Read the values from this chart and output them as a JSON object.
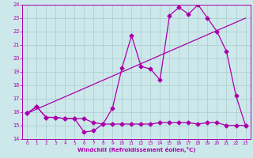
{
  "xlabel": "Windchill (Refroidissement éolien,°C)",
  "xlim": [
    -0.5,
    23.5
  ],
  "ylim": [
    14,
    24
  ],
  "yticks": [
    14,
    15,
    16,
    17,
    18,
    19,
    20,
    21,
    22,
    23,
    24
  ],
  "xticks": [
    0,
    1,
    2,
    3,
    4,
    5,
    6,
    7,
    8,
    9,
    10,
    11,
    12,
    13,
    14,
    15,
    16,
    17,
    18,
    19,
    20,
    21,
    22,
    23
  ],
  "bg_color": "#cce8ea",
  "grid_color": "#aacccc",
  "line_color": "#aa00aa",
  "line1_x": [
    0,
    1,
    2,
    3,
    4,
    5,
    6,
    7,
    8,
    9,
    10,
    11,
    12,
    13,
    14,
    15,
    16,
    17,
    18,
    19,
    20,
    21,
    22,
    23
  ],
  "line1_y": [
    15.9,
    16.4,
    15.6,
    15.6,
    15.5,
    15.5,
    14.5,
    14.6,
    15.1,
    15.1,
    15.1,
    15.1,
    15.1,
    15.1,
    15.2,
    15.2,
    15.2,
    15.2,
    15.1,
    15.2,
    15.2,
    15.0,
    15.0,
    15.0
  ],
  "line2_x": [
    0,
    1,
    2,
    3,
    4,
    5,
    6,
    7,
    8,
    9,
    10,
    11,
    12,
    13,
    14,
    15,
    16,
    17,
    18,
    19,
    20,
    21,
    22,
    23
  ],
  "line2_y": [
    15.9,
    16.4,
    15.6,
    15.6,
    15.5,
    15.5,
    15.5,
    15.2,
    15.1,
    16.3,
    19.3,
    21.7,
    19.4,
    19.2,
    18.4,
    23.2,
    23.8,
    23.3,
    24.0,
    23.0,
    22.0,
    20.5,
    17.2,
    15.0
  ],
  "line3_x": [
    0,
    23
  ],
  "line3_y": [
    15.9,
    23.0
  ],
  "marker_size": 2.5,
  "lw": 0.9
}
